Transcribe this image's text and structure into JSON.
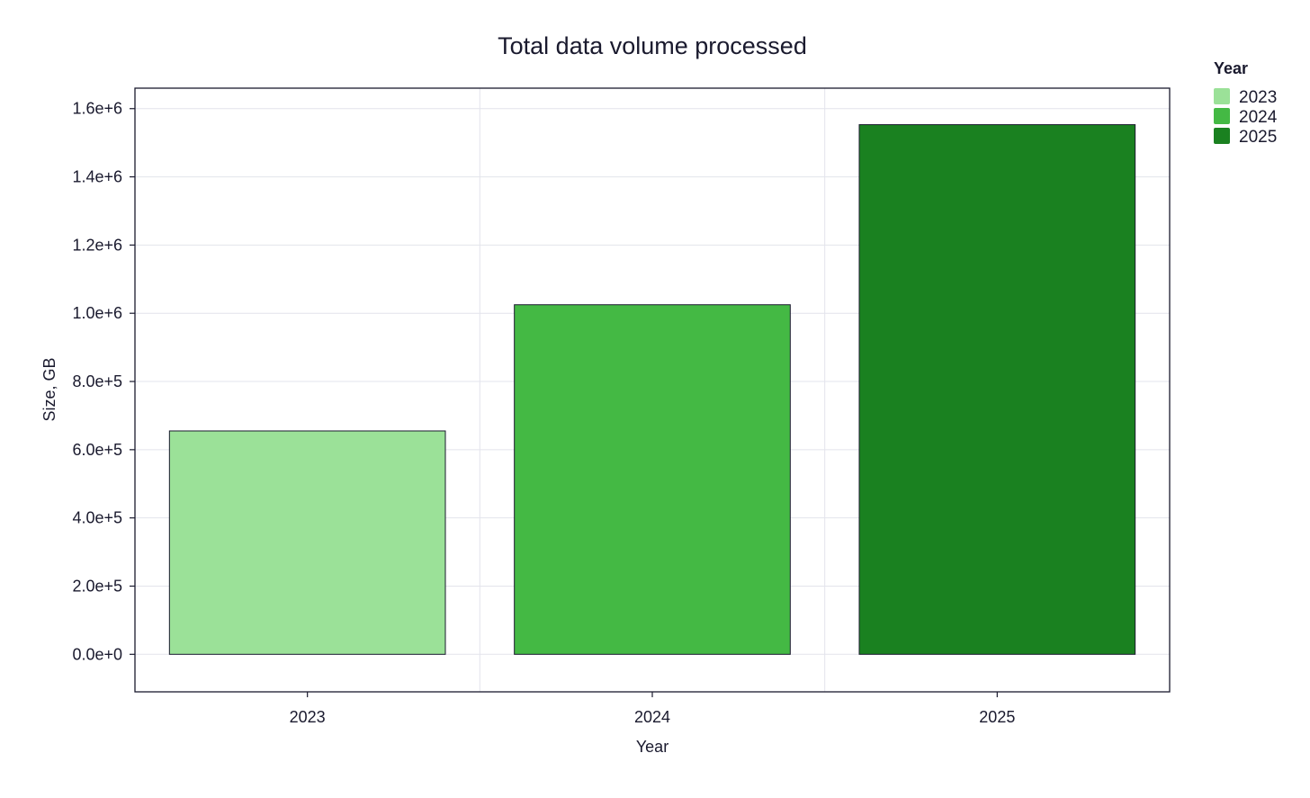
{
  "chart_data": {
    "type": "bar",
    "title": "Total data volume processed",
    "xlabel": "Year",
    "ylabel": "Size, GB",
    "categories": [
      "2023",
      "2024",
      "2025"
    ],
    "values": [
      655000,
      1025000,
      1553000
    ],
    "colors": [
      "#9be198",
      "#44b944",
      "#1a8120"
    ],
    "ylim": [
      -110000,
      1660000
    ],
    "yticks": [
      0,
      200000,
      400000,
      600000,
      800000,
      1000000,
      1200000,
      1400000,
      1600000
    ],
    "ytick_labels": [
      "0.0e+0",
      "2.0e+5",
      "4.0e+5",
      "6.0e+5",
      "8.0e+5",
      "1.0e+6",
      "1.2e+6",
      "1.4e+6",
      "1.6e+6"
    ],
    "grid": true,
    "legend": {
      "title": "Year",
      "position": "top-right outside",
      "items": [
        "2023",
        "2024",
        "2025"
      ]
    }
  }
}
